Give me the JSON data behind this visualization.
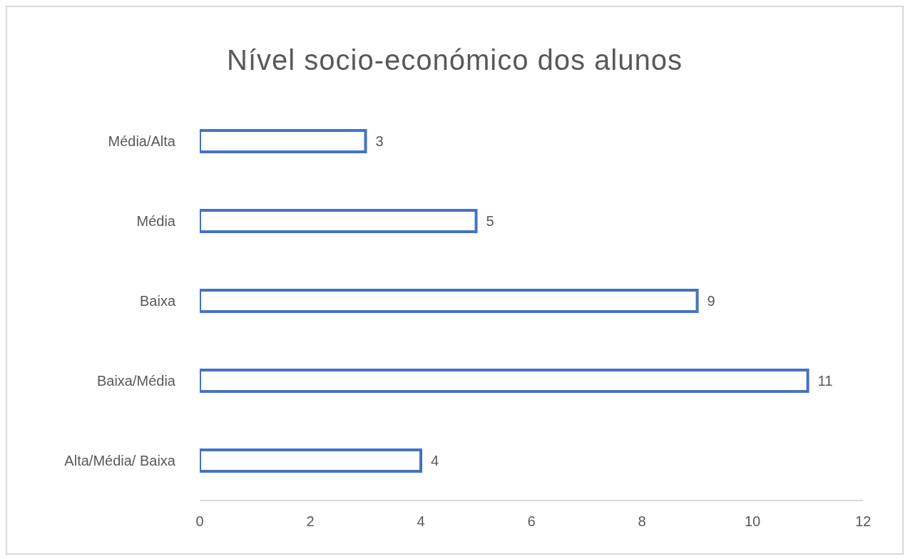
{
  "chart_data": {
    "type": "bar",
    "title": "Nível socio-económico dos alunos",
    "orientation": "horizontal",
    "categories": [
      "Média/Alta",
      "Média",
      "Baixa",
      "Baixa/Média",
      "Alta/Média/ Baixa"
    ],
    "values": [
      3,
      5,
      9,
      11,
      4
    ],
    "color": "#4472c4",
    "xlim": [
      0,
      12
    ],
    "xticks": [
      0,
      2,
      4,
      6,
      8,
      10,
      12
    ],
    "grid": false,
    "data_labels": true
  }
}
